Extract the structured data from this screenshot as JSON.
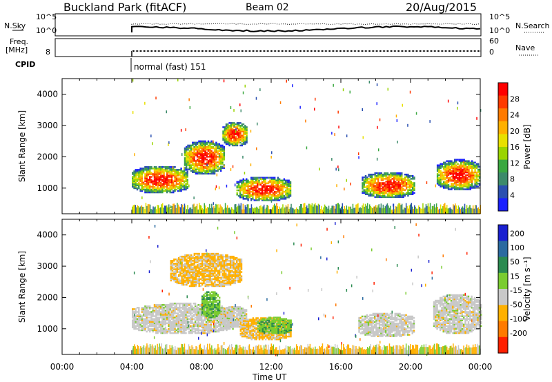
{
  "header": {
    "station": "Buckland Park (fitACF)",
    "beam": "Beam 02",
    "date": "20/Aug/2015"
  },
  "top_panels": {
    "nsky_label": "N.Sky",
    "nsearch_label": "N.Search",
    "nsky_ticks": [
      "10^5",
      "10^0"
    ],
    "nsearch_ticks": [
      "10^5",
      "10^0"
    ],
    "freq_label_line1": "Freq.",
    "freq_label_line2": "[MHz]",
    "freq_tick": "8",
    "nave_label": "Nave",
    "nave_ticks": [
      "60",
      "0"
    ],
    "cpid_label": "CPID",
    "cpid_text": "normal (fast) 151"
  },
  "chart_data": [
    {
      "type": "heatmap",
      "panel": "power",
      "ylabel": "Slant Range [km]",
      "yticks": [
        1000,
        2000,
        3000,
        4000
      ],
      "ylim": [
        180,
        4500
      ],
      "xlim_hours": [
        0,
        24
      ],
      "colorbar_label": "Power [dB]",
      "colorbar_ticks": [
        "28",
        "24",
        "20",
        "16",
        "12",
        "8",
        "4"
      ],
      "colorbar_colors": [
        "#ff0000",
        "#ff3a00",
        "#ff7a00",
        "#ffb000",
        "#e8e000",
        "#9ad400",
        "#3aa840",
        "#3c8a6a",
        "#2a4fb0",
        "#1a20ff"
      ],
      "regions": [
        {
          "x0": 4.0,
          "x1": 7.2,
          "y0": 800,
          "y1": 1700,
          "peak": 24
        },
        {
          "x0": 7.0,
          "x1": 9.3,
          "y0": 1400,
          "y1": 2500,
          "peak": 26
        },
        {
          "x0": 9.2,
          "x1": 10.6,
          "y0": 2300,
          "y1": 3100,
          "peak": 18
        },
        {
          "x0": 10.0,
          "x1": 13.1,
          "y0": 550,
          "y1": 1350,
          "peak": 24
        },
        {
          "x0": 17.2,
          "x1": 20.2,
          "y0": 650,
          "y1": 1500,
          "peak": 20
        },
        {
          "x0": 21.5,
          "x1": 24.0,
          "y0": 900,
          "y1": 1900,
          "peak": 24
        }
      ]
    },
    {
      "type": "heatmap",
      "panel": "velocity",
      "ylabel": "Slant Range [km]",
      "yticks": [
        1000,
        2000,
        3000,
        4000
      ],
      "ylim": [
        180,
        4500
      ],
      "xlim_hours": [
        0,
        24
      ],
      "xticks": [
        "00:00",
        "04:00",
        "08:00",
        "12:00",
        "16:00",
        "20:00",
        "00:00"
      ],
      "xlabel": "Time UT",
      "colorbar_label": "Velocity [m s⁻¹]",
      "colorbar_ticks": [
        "200",
        "100",
        "50",
        "15",
        "-15",
        "-50",
        "-100",
        "-200"
      ],
      "colorbar_colors": [
        "#1a20d0",
        "#2a6aa0",
        "#2a8a50",
        "#7acc30",
        "#c8c8c8",
        "#ffb000",
        "#ff7a00",
        "#ff2000"
      ],
      "regions": [
        {
          "x0": 4.0,
          "x1": 9.8,
          "y0": 800,
          "y1": 1800,
          "v": 0
        },
        {
          "x0": 9.0,
          "x1": 10.6,
          "y0": 1000,
          "y1": 1700,
          "v": 0
        },
        {
          "x0": 8.0,
          "x1": 9.0,
          "y0": 1300,
          "y1": 2200,
          "v": 60
        },
        {
          "x0": 10.2,
          "x1": 13.1,
          "y0": 600,
          "y1": 1350,
          "v": -40
        },
        {
          "x0": 11.2,
          "x1": 13.1,
          "y0": 800,
          "y1": 1350,
          "v": 40
        },
        {
          "x0": 17.0,
          "x1": 20.2,
          "y0": 700,
          "y1": 1500,
          "v": 0
        },
        {
          "x0": 21.3,
          "x1": 24.0,
          "y0": 800,
          "y1": 2100,
          "v": 0
        },
        {
          "x0": 6.2,
          "x1": 10.3,
          "y0": 2300,
          "y1": 3400,
          "v": -40
        }
      ]
    }
  ]
}
